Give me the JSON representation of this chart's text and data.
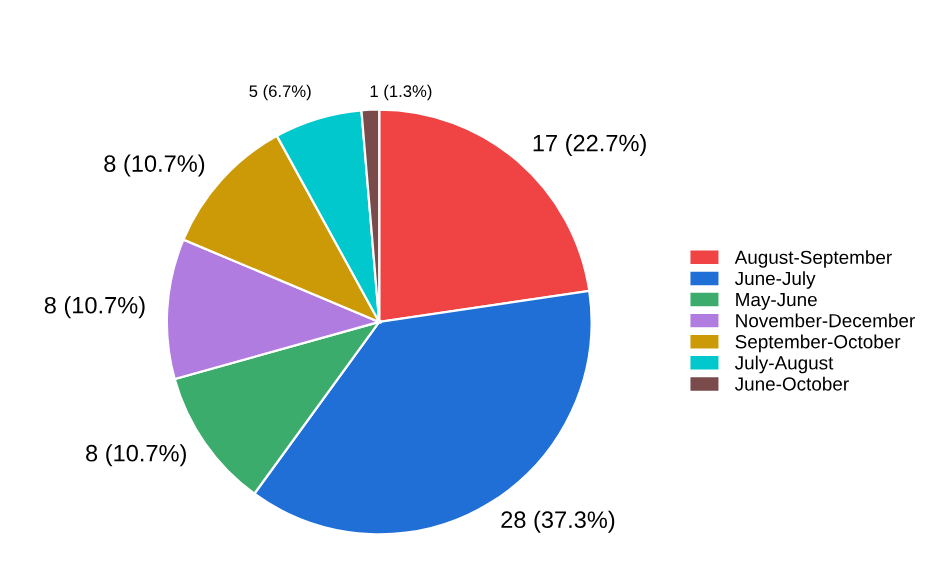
{
  "chart_data": {
    "type": "pie",
    "categories": [
      "August-September",
      "June-July",
      "May-June",
      "November-December",
      "September-October",
      "July-August",
      "June-October"
    ],
    "values": [
      17,
      28,
      8,
      8,
      8,
      5,
      1
    ],
    "colors": [
      "#f04343",
      "#1f6fd6",
      "#3cac6c",
      "#b07ce0",
      "#cc9a06",
      "#00c8cc",
      "#7a4b4b"
    ],
    "value_labels": [
      "17 (22.7%)",
      "28 (37.3%)",
      "8 (10.7%)",
      "8 (10.7%)",
      "8 (10.7%)",
      "5 (6.7%)",
      "1 (1.3%)"
    ],
    "legend": "right"
  }
}
